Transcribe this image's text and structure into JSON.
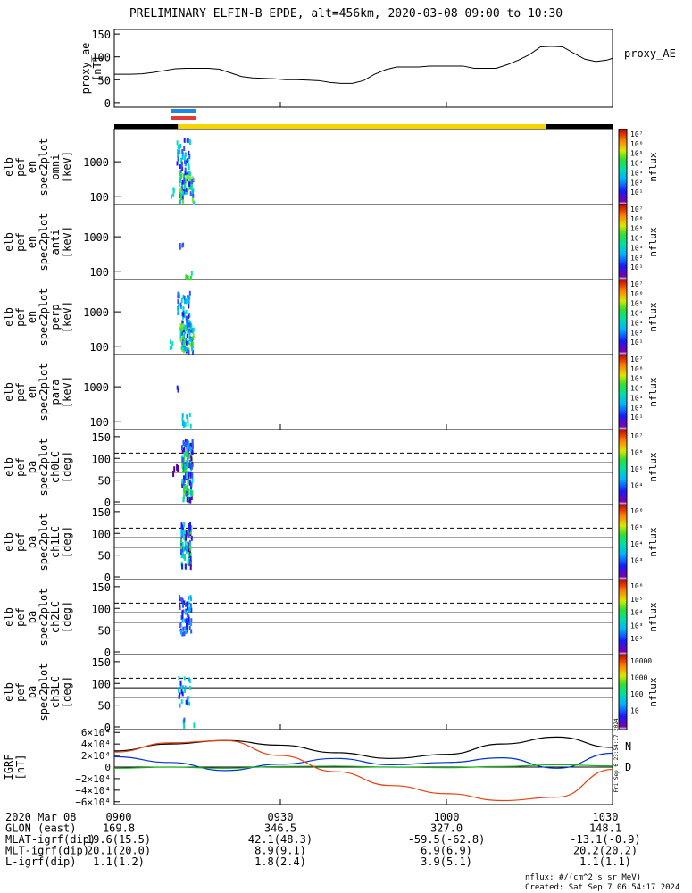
{
  "title": "PRELIMINARY ELFIN-B EPDE, alt=456km, 2020-03-08 09:00 to 10:30",
  "colors": {
    "axis": "#000000",
    "state_bar_night": "#000000",
    "state_bar_day": "#f5d400",
    "sci_zone_1": "#1e88e5",
    "sci_zone_2": "#e53935",
    "grf_N": "#0033cc",
    "grf_D": "#e8420f",
    "grf_E": "#10b010",
    "grf_total": "#000000"
  },
  "proxy_ae": {
    "series_label": "proxy_AE",
    "ylabel_lines": [
      "proxy_ae",
      "[nT]"
    ],
    "yticks": [
      "150",
      "100",
      "50",
      "0"
    ],
    "ylim": [
      -10,
      160
    ]
  },
  "state_bar": {
    "segments": [
      {
        "start": 0,
        "end": 11.5,
        "color": "night"
      },
      {
        "start": 11.5,
        "end": 78,
        "color": "day"
      },
      {
        "start": 78,
        "end": 90,
        "color": "night"
      }
    ]
  },
  "energy_panels": [
    {
      "ylabel_lines": [
        "elb",
        "pef",
        "en",
        "spec2plot",
        "omni",
        "[keV]"
      ],
      "yticks": [
        "1000",
        "100"
      ],
      "cbar_ticks": [
        "10⁷",
        "10⁶",
        "10⁵",
        "10⁴",
        "10³",
        "10²",
        "10¹"
      ],
      "cbar_label": "nflux"
    },
    {
      "ylabel_lines": [
        "elb",
        "pef",
        "en",
        "spec2plot",
        "anti",
        "[keV]"
      ],
      "yticks": [
        "1000",
        "100"
      ],
      "cbar_ticks": [
        "10⁷",
        "10⁶",
        "10⁵",
        "10⁴",
        "10³",
        "10²",
        "10¹"
      ],
      "cbar_label": "nflux"
    },
    {
      "ylabel_lines": [
        "elb",
        "pef",
        "en",
        "spec2plot",
        "perp",
        "[keV]"
      ],
      "yticks": [
        "1000",
        "100"
      ],
      "cbar_ticks": [
        "10⁷",
        "10⁶",
        "10⁵",
        "10⁴",
        "10³",
        "10²",
        "10¹"
      ],
      "cbar_label": "nflux"
    },
    {
      "ylabel_lines": [
        "elb",
        "pef",
        "en",
        "spec2plot",
        "para",
        "[keV]"
      ],
      "yticks": [
        "1000",
        "100"
      ],
      "cbar_ticks": [
        "10⁷",
        "10⁶",
        "10⁵",
        "10⁴",
        "10³",
        "10²",
        "10¹"
      ],
      "cbar_label": "nflux"
    }
  ],
  "pa_panels": [
    {
      "ylabel_lines": [
        "elb",
        "pef",
        "pa",
        "spec2plot",
        "ch0LC",
        "[deg]"
      ],
      "yticks": [
        "150",
        "100",
        "50",
        "0"
      ],
      "cbar_ticks": [
        "10⁷",
        "10⁶",
        "10⁵",
        "10⁴"
      ],
      "cbar_label": "nflux"
    },
    {
      "ylabel_lines": [
        "elb",
        "pef",
        "pa",
        "spec2plot",
        "ch1LC",
        "[deg]"
      ],
      "yticks": [
        "150",
        "100",
        "50",
        "0"
      ],
      "cbar_ticks": [
        "10⁶",
        "10⁵",
        "10⁴",
        "10³"
      ],
      "cbar_label": "nflux"
    },
    {
      "ylabel_lines": [
        "elb",
        "pef",
        "pa",
        "spec2plot",
        "ch2LC",
        "[deg]"
      ],
      "yticks": [
        "150",
        "100",
        "50",
        "0"
      ],
      "cbar_ticks": [
        "10⁶",
        "10⁵",
        "10⁴",
        "10³",
        "10²"
      ],
      "cbar_label": "nflux"
    },
    {
      "ylabel_lines": [
        "elb",
        "pef",
        "pa",
        "spec2plot",
        "ch3LC",
        "[deg]"
      ],
      "yticks": [
        "150",
        "100",
        "50",
        "0"
      ],
      "cbar_ticks": [
        "10000",
        "1000",
        "100",
        "10"
      ],
      "cbar_label": "nflux"
    }
  ],
  "grf_panel": {
    "ylabel_lines": [
      "IGRF",
      "[nT]"
    ],
    "yticks": [
      "6×10⁴",
      "4×10⁴",
      "2×10⁴",
      "0",
      "−2×10⁴",
      "−4×10⁴",
      "−6×10⁴"
    ],
    "legend": [
      "N",
      "D"
    ],
    "side_text": "Fri Sep  6 23:54:17 2024"
  },
  "chart_data": {
    "type": "line",
    "title": "PRELIMINARY ELFIN-B EPDE, alt=456km, 2020-03-08 09:00 to 10:30",
    "x_range_minutes": [
      0,
      90
    ],
    "xticks": [
      "0900",
      "0930",
      "1000",
      "1030"
    ],
    "series": [
      {
        "name": "proxy_AE",
        "x_minutes": [
          0,
          3,
          5,
          7,
          9,
          11,
          13,
          15,
          17,
          19,
          21,
          23,
          25,
          27,
          29,
          31,
          33,
          35,
          37,
          39,
          41,
          43,
          45,
          47,
          49,
          51,
          53,
          55,
          57,
          59,
          61,
          63,
          65,
          67,
          69,
          71,
          73,
          75,
          77,
          79,
          81,
          83,
          85,
          87,
          89,
          90
        ],
        "values": [
          62,
          62,
          63,
          66,
          70,
          74,
          75,
          75,
          75,
          73,
          65,
          57,
          54,
          53,
          52,
          50,
          50,
          49,
          48,
          44,
          42,
          42,
          48,
          62,
          72,
          78,
          78,
          78,
          80,
          80,
          80,
          80,
          75,
          75,
          75,
          83,
          93,
          105,
          122,
          123,
          122,
          108,
          95,
          90,
          93,
          97
        ]
      }
    ],
    "igrf": {
      "x_minutes": [
        0,
        10,
        20,
        30,
        40,
        50,
        60,
        70,
        80,
        90
      ],
      "total": [
        28000,
        40000,
        46000,
        38000,
        25000,
        15000,
        22000,
        40000,
        52000,
        34000
      ],
      "N": [
        18000,
        8000,
        -6000,
        5000,
        15000,
        4000,
        8000,
        16000,
        -2000,
        24000
      ],
      "D": [
        26000,
        42000,
        46000,
        20000,
        -8000,
        -32000,
        -46000,
        -58000,
        -52000,
        -4000
      ],
      "E": [
        -2000,
        0,
        -2000,
        1000,
        1500,
        0,
        -1000,
        1000,
        4000,
        2000
      ]
    },
    "precipitation_event_minutes": [
      12.5,
      14.5
    ],
    "ylim_igrf": [
      -65000,
      65000
    ]
  },
  "footer": {
    "rows": [
      {
        "label": "2020 Mar 08",
        "values": [
          "0900",
          "0930",
          "1000",
          "1030"
        ]
      },
      {
        "label": "GLON (east)",
        "values": [
          "169.8",
          "346.5",
          "327.0",
          "148.1"
        ]
      },
      {
        "label": "MLAT-igrf(dip)",
        "values": [
          "19.6(15.5)",
          "42.1(48.3)",
          "-59.5(-62.8)",
          "-13.1(-0.9)"
        ]
      },
      {
        "label": "MLT-igrf(dip)",
        "values": [
          "20.1(20.0)",
          "8.9(9.1)",
          "6.9(6.9)",
          "20.2(20.2)"
        ]
      },
      {
        "label": "L-igrf(dip)",
        "values": [
          "1.1(1.2)",
          "1.8(2.4)",
          "3.9(5.1)",
          "1.1(1.1)"
        ]
      }
    ],
    "units_note": "nflux: #/(cm^2 s sr MeV)",
    "created": "Created: Sat Sep  7 06:54:17 2024"
  }
}
